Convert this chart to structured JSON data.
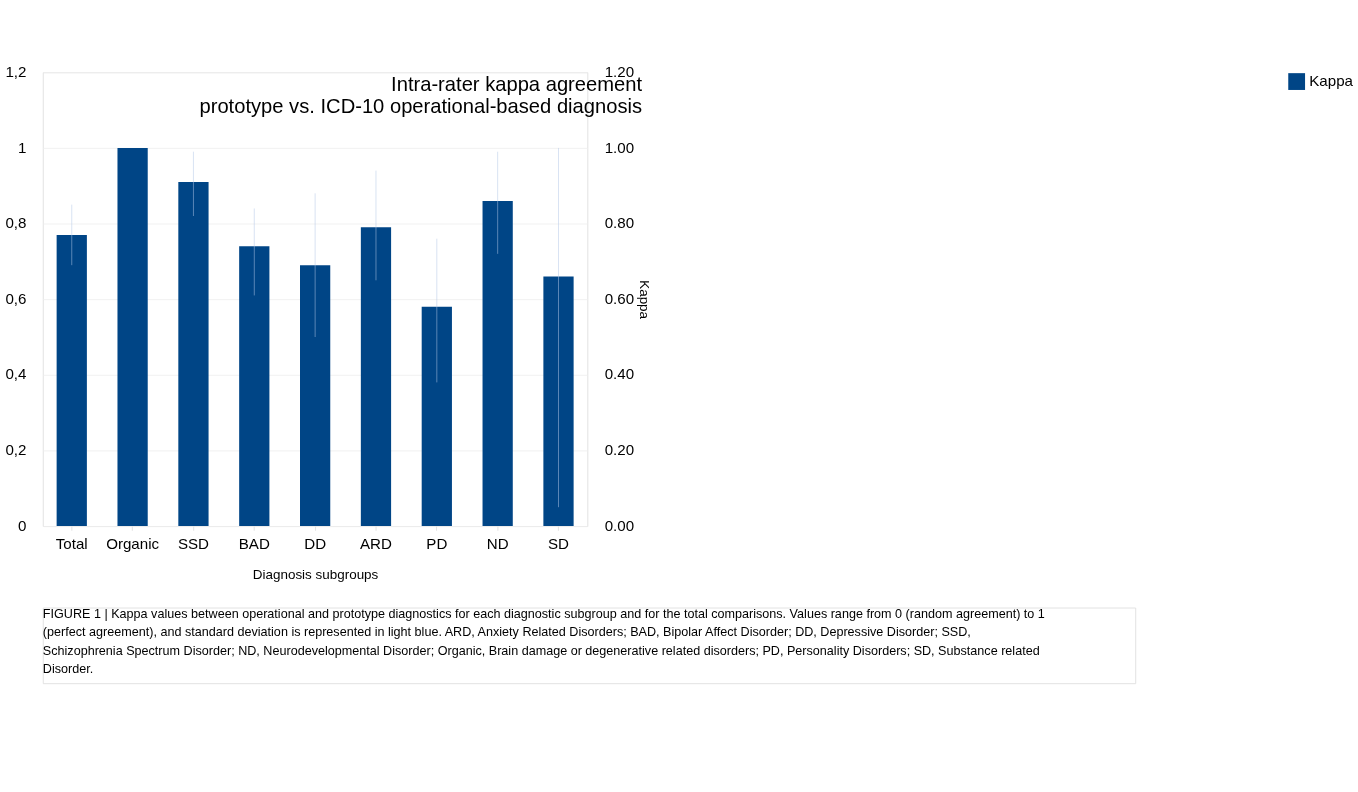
{
  "chart_data": {
    "type": "bar",
    "title": "Intra-rater kappa agreement\nprototype vs. ICD-10 operational-based diagnosis",
    "xlabel": "Diagnosis subgroups",
    "y2label": "Kappa",
    "categories": [
      "Total",
      "Organic",
      "SSD",
      "BAD",
      "DD",
      "ARD",
      "PD",
      "ND",
      "SD"
    ],
    "series": [
      {
        "name": "Kappa",
        "color": "#004586",
        "values": [
          0.77,
          1.0,
          0.91,
          0.74,
          0.69,
          0.79,
          0.58,
          0.86,
          0.66
        ],
        "errors": [
          [
            0.69,
            0.85
          ],
          null,
          [
            0.82,
            0.99
          ],
          [
            0.61,
            0.84
          ],
          [
            0.5,
            0.88
          ],
          [
            0.65,
            0.94
          ],
          [
            0.38,
            0.76
          ],
          [
            0.72,
            0.99
          ],
          [
            0.05,
            1.0
          ]
        ]
      }
    ],
    "ylim": [
      0,
      1.2
    ],
    "yticks": [
      0,
      {
        "value": 0.2,
        "label": "0,2"
      },
      {
        "value": 0.4,
        "label": "0,4"
      },
      {
        "value": 0.6,
        "label": "0,6"
      },
      {
        "value": 0.8,
        "label": "0,8"
      },
      1,
      {
        "value": 1.2,
        "label": "1,2"
      }
    ],
    "y2lim": [
      0,
      1.2
    ],
    "y2ticks": [
      {
        "value": 0,
        "label": "0.00"
      },
      {
        "value": 0.2,
        "label": "0.20"
      },
      {
        "value": 0.4,
        "label": "0.40"
      },
      {
        "value": 0.6,
        "label": "0.60"
      },
      {
        "value": 0.8,
        "label": "0.80"
      },
      {
        "value": 1,
        "label": "1.00"
      },
      {
        "value": 1.2,
        "label": "1.20"
      }
    ],
    "grid": "y",
    "legend": "right",
    "annotations": [
      "FIGURE 1 | Kappa values between operational and prototype diagnostics for each diagnostic subgroup and for the total comparisons. Values range from 0 (random agreement) to 1 (perfect agreement), and standard deviation is represented in light blue. ARD, Anxiety Related Disorders; BAD, Bipolar Affect Disorder; DD, Depressive Disorder; SSD, Schizophrenia Spectrum Disorder; ND, Neurodevelopmental Disorder; Organic, Brain damage or degenerative related disorders; PD, Personality Disorders; SD, Substance related Disorder."
    ]
  }
}
